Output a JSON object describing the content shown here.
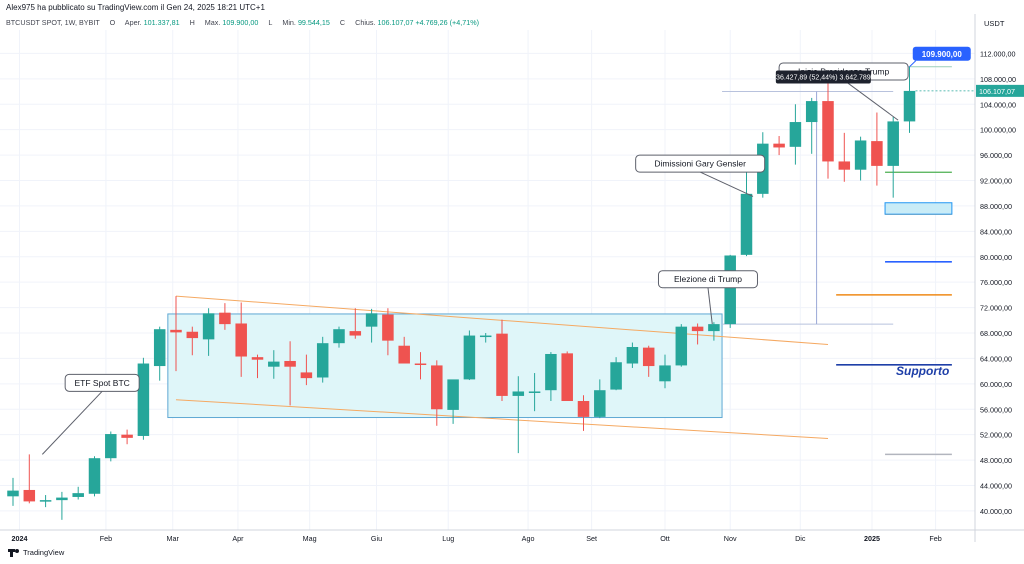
{
  "header": {
    "published_by": "Alex975 ha pubblicato su TradingView.com il Gen 24, 2025 18:21 UTC+1",
    "symbol": "BTCUSDT SPOT, 1W, BYBIT",
    "open_label": "O",
    "open_text": "Aper.",
    "open_value": "101.337,81",
    "high_text": "H",
    "high_label": "Max.",
    "high_value": "109.900,00",
    "low_text": "L",
    "low_label": "Min.",
    "low_value": "99.544,15",
    "close_text": "C",
    "close_label": "Chius.",
    "close_value": "106.107,07",
    "change_value": "+4.769,26 (+4,71%)"
  },
  "currency": "USDT",
  "footer": {
    "brand": "TradingView"
  },
  "colors": {
    "up": "#26a69a",
    "down": "#ef5350",
    "channel": "#f5a962",
    "range_fill": "#dff6f9",
    "range_border": "#5fa8d3",
    "price_tag": "#2962ff",
    "support": "#1e3fa8"
  },
  "chart_data": {
    "type": "candlestick",
    "title": "BTCUSDT SPOT, 1W, BYBIT",
    "x_tick_labels": [
      "2024",
      "Feb",
      "Mar",
      "Apr",
      "Mag",
      "Giu",
      "Lug",
      "Ago",
      "Set",
      "Ott",
      "Nov",
      "Dic",
      "2025",
      "Feb"
    ],
    "y_tick_labels": [
      "112.000,00",
      "108.000,00",
      "104.000,00",
      "100.000,00",
      "96.000,00",
      "92.000,00",
      "88.000,00",
      "84.000,00",
      "80.000,00",
      "76.000,00",
      "72.000,00",
      "68.000,00",
      "64.000,00",
      "60.000,00",
      "56.000,00",
      "52.000,00",
      "48.000,00",
      "44.000,00",
      "40.000,00"
    ],
    "y_ticks": [
      112000,
      108000,
      104000,
      100000,
      96000,
      92000,
      88000,
      84000,
      80000,
      76000,
      72000,
      68000,
      64000,
      60000,
      56000,
      52000,
      48000,
      44000,
      40000
    ],
    "ylim": [
      37000,
      116000
    ],
    "x_ticks_week_index": [
      0.4,
      5.7,
      9.8,
      13.8,
      18.2,
      22.3,
      26.7,
      31.6,
      35.5,
      40.0,
      44.0,
      48.3,
      52.7,
      56.6
    ],
    "candles": [
      {
        "o": 42300,
        "h": 45200,
        "l": 40800,
        "c": 43200
      },
      {
        "o": 43300,
        "h": 48900,
        "l": 41200,
        "c": 41500
      },
      {
        "o": 41600,
        "h": 42500,
        "l": 40600,
        "c": 41700
      },
      {
        "o": 41700,
        "h": 43000,
        "l": 38600,
        "c": 42100
      },
      {
        "o": 42200,
        "h": 43800,
        "l": 41800,
        "c": 42800
      },
      {
        "o": 42700,
        "h": 48600,
        "l": 42300,
        "c": 48300
      },
      {
        "o": 48300,
        "h": 52500,
        "l": 47800,
        "c": 52100
      },
      {
        "o": 52000,
        "h": 52800,
        "l": 50500,
        "c": 51500
      },
      {
        "o": 51800,
        "h": 64100,
        "l": 51200,
        "c": 63200
      },
      {
        "o": 62800,
        "h": 69000,
        "l": 60500,
        "c": 68600
      },
      {
        "o": 68500,
        "h": 73800,
        "l": 62000,
        "c": 68100
      },
      {
        "o": 68200,
        "h": 69000,
        "l": 64500,
        "c": 67200
      },
      {
        "o": 67000,
        "h": 71900,
        "l": 64400,
        "c": 71100
      },
      {
        "o": 71200,
        "h": 72700,
        "l": 68500,
        "c": 69400
      },
      {
        "o": 69500,
        "h": 72800,
        "l": 61100,
        "c": 64300
      },
      {
        "o": 64200,
        "h": 64600,
        "l": 60900,
        "c": 63800
      },
      {
        "o": 62700,
        "h": 65300,
        "l": 60800,
        "c": 63500
      },
      {
        "o": 63600,
        "h": 66700,
        "l": 56600,
        "c": 62700
      },
      {
        "o": 61800,
        "h": 64600,
        "l": 59800,
        "c": 60900
      },
      {
        "o": 61000,
        "h": 67400,
        "l": 60200,
        "c": 66400
      },
      {
        "o": 66400,
        "h": 69000,
        "l": 65700,
        "c": 68600
      },
      {
        "o": 68300,
        "h": 71900,
        "l": 67100,
        "c": 67600
      },
      {
        "o": 69000,
        "h": 71800,
        "l": 66500,
        "c": 71100
      },
      {
        "o": 70900,
        "h": 71900,
        "l": 64500,
        "c": 66800
      },
      {
        "o": 66000,
        "h": 67400,
        "l": 63200,
        "c": 63200
      },
      {
        "o": 63200,
        "h": 65000,
        "l": 60700,
        "c": 63000
      },
      {
        "o": 62900,
        "h": 63700,
        "l": 53400,
        "c": 56000
      },
      {
        "o": 55900,
        "h": 60100,
        "l": 53700,
        "c": 60700
      },
      {
        "o": 60700,
        "h": 68400,
        "l": 60600,
        "c": 67600
      },
      {
        "o": 67600,
        "h": 68000,
        "l": 66500,
        "c": 67600
      },
      {
        "o": 67900,
        "h": 70100,
        "l": 57300,
        "c": 58100
      },
      {
        "o": 58100,
        "h": 61200,
        "l": 49100,
        "c": 58800
      },
      {
        "o": 58700,
        "h": 61700,
        "l": 55700,
        "c": 58800
      },
      {
        "o": 59000,
        "h": 65000,
        "l": 57300,
        "c": 64700
      },
      {
        "o": 64800,
        "h": 65100,
        "l": 57700,
        "c": 57300
      },
      {
        "o": 57300,
        "h": 58200,
        "l": 52600,
        "c": 54800
      },
      {
        "o": 54800,
        "h": 60700,
        "l": 54600,
        "c": 59000
      },
      {
        "o": 59100,
        "h": 64200,
        "l": 59000,
        "c": 63400
      },
      {
        "o": 63200,
        "h": 66500,
        "l": 62500,
        "c": 65800
      },
      {
        "o": 65700,
        "h": 66000,
        "l": 61100,
        "c": 62800
      },
      {
        "o": 60400,
        "h": 64600,
        "l": 59300,
        "c": 62900
      },
      {
        "o": 62900,
        "h": 69400,
        "l": 62700,
        "c": 69000
      },
      {
        "o": 69000,
        "h": 69500,
        "l": 66200,
        "c": 68300
      },
      {
        "o": 68300,
        "h": 69700,
        "l": 66800,
        "c": 69400
      },
      {
        "o": 69400,
        "h": 80300,
        "l": 68800,
        "c": 80200
      },
      {
        "o": 80300,
        "h": 93500,
        "l": 80100,
        "c": 89900
      },
      {
        "o": 89900,
        "h": 99600,
        "l": 89300,
        "c": 97800
      },
      {
        "o": 97800,
        "h": 99000,
        "l": 96000,
        "c": 97200
      },
      {
        "o": 97300,
        "h": 104000,
        "l": 94500,
        "c": 101200
      },
      {
        "o": 101200,
        "h": 105000,
        "l": 96200,
        "c": 104500
      },
      {
        "o": 104500,
        "h": 108300,
        "l": 92300,
        "c": 95000
      },
      {
        "o": 95000,
        "h": 99500,
        "l": 91800,
        "c": 93700
      },
      {
        "o": 93700,
        "h": 98900,
        "l": 92000,
        "c": 98300
      },
      {
        "o": 98200,
        "h": 102700,
        "l": 91200,
        "c": 94300
      },
      {
        "o": 94300,
        "h": 102000,
        "l": 89300,
        "c": 101300
      },
      {
        "o": 101300,
        "h": 109900,
        "l": 99500,
        "c": 106100
      }
    ],
    "range_box": {
      "x0": 9.5,
      "x1": 43.5,
      "y0": 54700,
      "y1": 71000
    },
    "channel_upper": {
      "x0": 10,
      "y0": 73800,
      "x1": 50,
      "y1": 66200
    },
    "channel_lower": {
      "x0": 10,
      "y0": 57500,
      "x1": 50,
      "y1": 51400
    },
    "measure_line": {
      "x": 49.3,
      "y0": 69400,
      "y1": 106000
    },
    "measure_base": {
      "x0": 43.5,
      "x1": 54,
      "y": 69400
    },
    "measure_top": {
      "x0": 43.5,
      "x1": 54,
      "y": 106000
    },
    "measure_label": "36.427,89 (52,44%) 3.642.789",
    "current_price_label": "106.107,07",
    "current_price": 106107,
    "high_price_label": "109.900,00",
    "high_price": 109900,
    "high_line": {
      "x0": 53.5,
      "x1": 57.6,
      "y": 109900
    },
    "hlines": [
      {
        "x0": 53.5,
        "x1": 57.6,
        "y": 93300,
        "color": "#4caf50",
        "width": 1.2
      },
      {
        "x0": 53.5,
        "x1": 57.6,
        "y": 86700,
        "color": "#f5a623",
        "width": 1.2
      },
      {
        "x0": 53.5,
        "x1": 57.6,
        "y": 79200,
        "color": "#2962ff",
        "width": 1.6
      },
      {
        "x0": 50.5,
        "x1": 57.6,
        "y": 74000,
        "color": "#ef8a17",
        "width": 1.6
      },
      {
        "x0": 50.5,
        "x1": 57.6,
        "y": 63000,
        "color": "#1e3fa8",
        "width": 1.6
      },
      {
        "x0": 53.5,
        "x1": 57.6,
        "y": 48900,
        "color": "#b2b5be",
        "width": 1.4
      }
    ],
    "zone_box": {
      "x0": 53.5,
      "x1": 57.6,
      "y0": 86700,
      "y1": 88500
    },
    "support_label": "Supporto",
    "annotations": [
      {
        "text": "ETF Spot BTC",
        "x": 1.8,
        "y": 48900,
        "box_x": 3.2,
        "box_y": 61500
      },
      {
        "text": "Elezione di Trump",
        "x": 42.9,
        "y": 69400,
        "box_x": 39.6,
        "box_y": 77800
      },
      {
        "text": "Dimissioni Gary Gensler",
        "x": 45.4,
        "y": 89500,
        "box_x": 38.2,
        "box_y": 96000
      },
      {
        "text": "Inizio Presidenza Trump",
        "x": 54.3,
        "y": 101500,
        "box_x": 47.0,
        "box_y": 110500
      }
    ]
  }
}
